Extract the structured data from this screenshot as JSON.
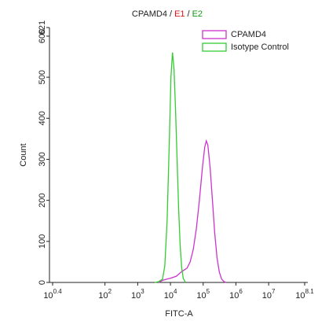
{
  "chart_data": {
    "type": "line",
    "title_parts": [
      {
        "text": "CPAMD4 /",
        "color": "#222222"
      },
      {
        "text": "E1",
        "color": "#dd1111"
      },
      {
        "text": "/",
        "color": "#222222"
      },
      {
        "text": "E2",
        "color": "#119911"
      }
    ],
    "xlabel": "FITC-A",
    "ylabel": "Count",
    "xscale": "log",
    "xlim": [
      2.51188643,
      125892541
    ],
    "xticks": [
      {
        "value": 2.51188643,
        "label": "10^0.4"
      },
      {
        "value": 100,
        "label": "10^2"
      },
      {
        "value": 1000,
        "label": "10^3"
      },
      {
        "value": 10000,
        "label": "10^4"
      },
      {
        "value": 100000,
        "label": "10^5"
      },
      {
        "value": 1000000,
        "label": "10^6"
      },
      {
        "value": 10000000,
        "label": "10^7"
      },
      {
        "value": 125892541,
        "label": "10^8.1"
      }
    ],
    "ylim": [
      0,
      621
    ],
    "yticks": [
      0,
      100,
      200,
      300,
      400,
      500,
      600,
      621
    ],
    "legend": "upper right",
    "series": [
      {
        "name": "CPAMD4",
        "color": "#cc33cc",
        "x": [
          4365,
          5715,
          7480,
          9820,
          15100,
          20890,
          25940,
          32210,
          39990,
          49660,
          61660,
          76560,
          94840,
          111700,
          124500,
          138700,
          162900,
          191900,
          225400,
          264900,
          311900,
          366400,
          431500,
          507000
        ],
        "values": [
          0,
          5,
          8,
          10,
          15,
          25,
          30,
          35,
          50,
          80,
          130,
          200,
          280,
          330,
          345,
          335,
          280,
          200,
          120,
          60,
          25,
          8,
          2,
          0
        ]
      },
      {
        "name": "Isotype Control",
        "color": "#33cc33",
        "x": [
          3311,
          4365,
          5715,
          6714,
          7907,
          9290,
          10350,
          11530,
          12850,
          14320,
          15960,
          17780,
          19810,
          22080,
          24600,
          28910
        ],
        "values": [
          0,
          2,
          8,
          40,
          150,
          350,
          500,
          560,
          520,
          420,
          300,
          180,
          90,
          35,
          10,
          0
        ]
      }
    ]
  }
}
